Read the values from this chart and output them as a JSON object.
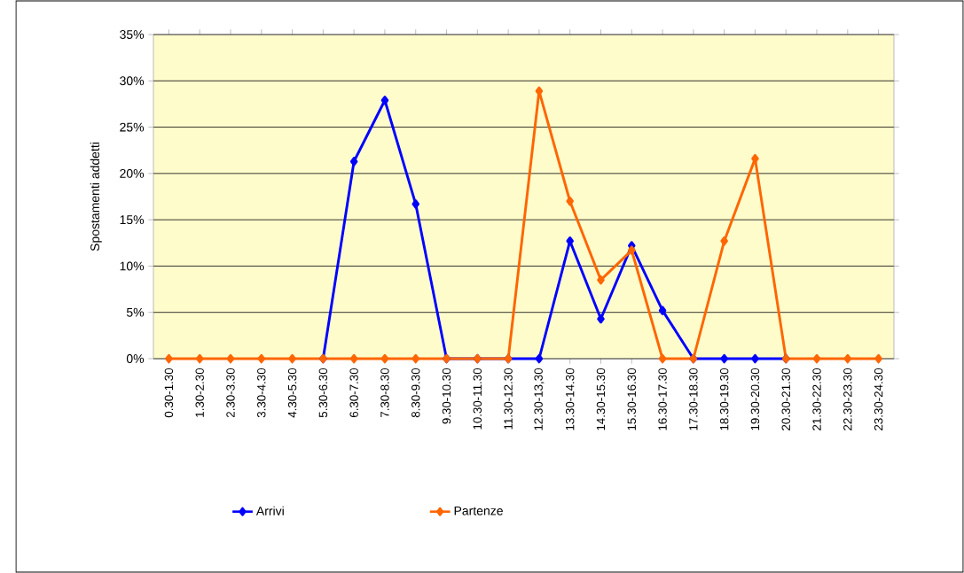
{
  "chart_data": {
    "type": "line",
    "ylabel": "Spostamenti addetti",
    "categories": [
      "0.30-1.30",
      "1.30-2.30",
      "2.30-3.30",
      "3.30-4.30",
      "4.30-5.30",
      "5.30-6.30",
      "6.30-7.30",
      "7.30-8.30",
      "8.30-9.30",
      "9.30-10.30",
      "10.30-11.30",
      "11.30-12.30",
      "12.30-13,30",
      "13.30-14.30",
      "14.30-15.30",
      "15.30-16.30",
      "16.30-17.30",
      "17.30-18.30",
      "18.30-19.30",
      "19.30-20.30",
      "20.30-21.30",
      "21.30-22.30",
      "22.30-23.30",
      "23.30-24.30"
    ],
    "series": [
      {
        "name": "Arrivi",
        "color": "#0000ff",
        "values": [
          null,
          null,
          null,
          null,
          null,
          0,
          21.3,
          27.9,
          16.7,
          0,
          0,
          0,
          0,
          12.7,
          4.3,
          12.2,
          5.2,
          0,
          0,
          0,
          0,
          null,
          null,
          null
        ]
      },
      {
        "name": "Partenze",
        "color": "#ff6600",
        "values": [
          0,
          0,
          0,
          0,
          0,
          0,
          0,
          0,
          0,
          0,
          0,
          0,
          28.9,
          17.0,
          8.5,
          11.7,
          0,
          0,
          12.7,
          21.6,
          0,
          0,
          0,
          0
        ]
      }
    ],
    "ylim": [
      0,
      35
    ],
    "yticks": [
      {
        "value": 0,
        "label": "0%"
      },
      {
        "value": 5,
        "label": "5%"
      },
      {
        "value": 10,
        "label": "10%"
      },
      {
        "value": 15,
        "label": "15%"
      },
      {
        "value": 20,
        "label": "20%"
      },
      {
        "value": 25,
        "label": "25%"
      },
      {
        "value": 30,
        "label": "30%"
      },
      {
        "value": 35,
        "label": "35%"
      }
    ],
    "grid": "y",
    "legend": "bottom",
    "marker": "diamond",
    "line_style": "solid"
  }
}
